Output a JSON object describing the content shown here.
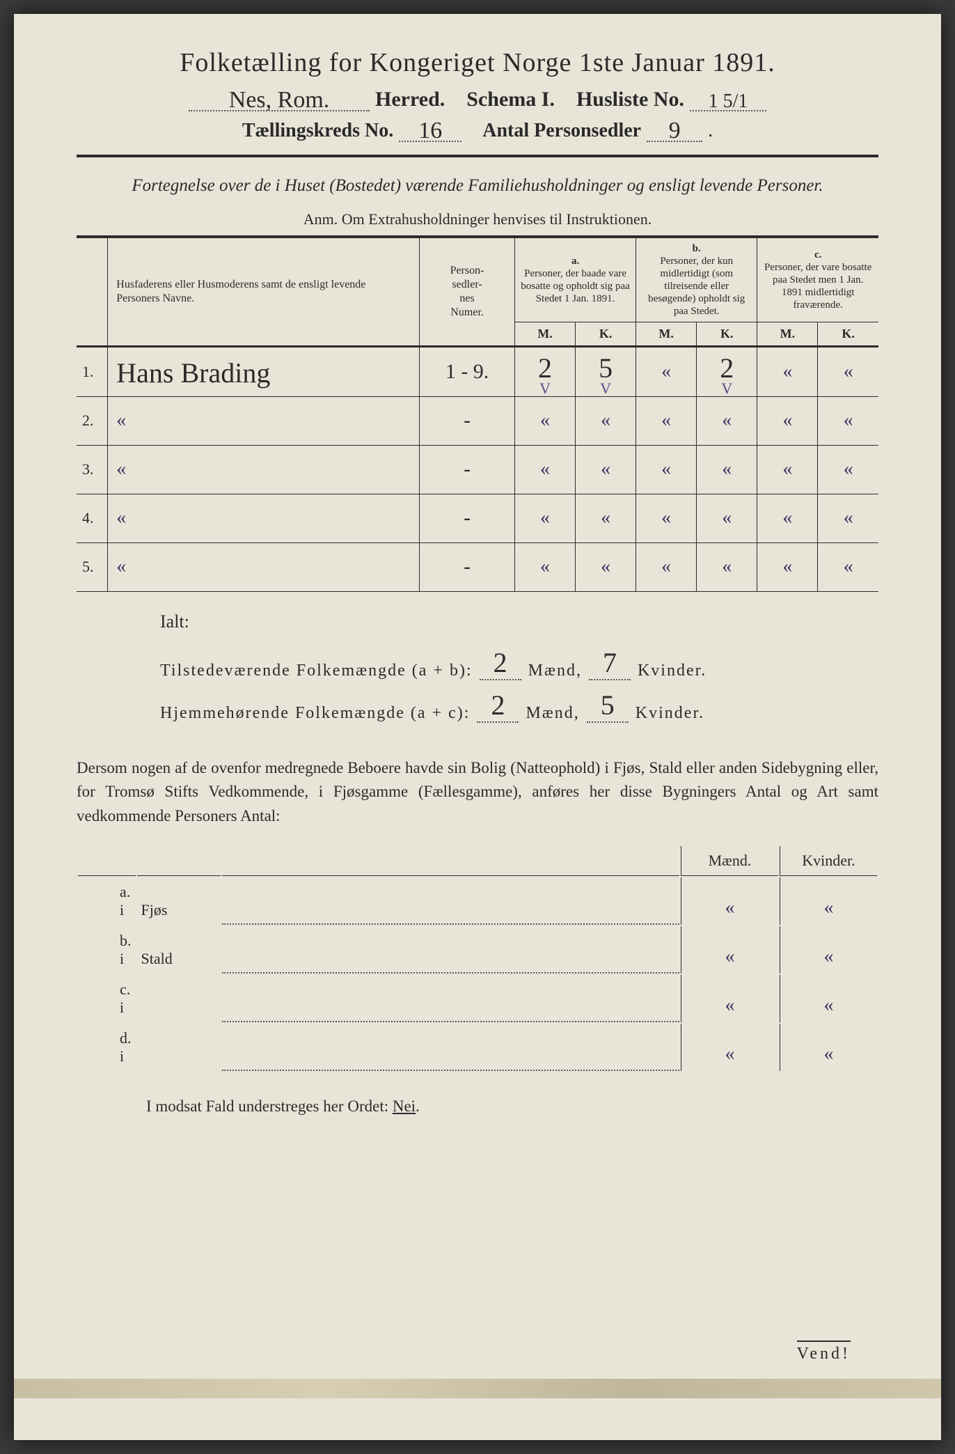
{
  "title": "Folketælling for Kongeriget Norge 1ste Januar 1891.",
  "header": {
    "herred_value": "Nes, Rom.",
    "herred_label": "Herred.",
    "schema_label": "Schema I.",
    "husliste_label": "Husliste No.",
    "husliste_value": "1 5/1",
    "kreds_label": "Tællingskreds No.",
    "kreds_value": "16",
    "personsedler_label": "Antal Personsedler",
    "personsedler_value": "9"
  },
  "subtitle": "Fortegnelse over de i Huset (Bostedet) værende Familiehusholdninger og ensligt levende Personer.",
  "anm": "Anm. Om Extrahusholdninger henvises til Instruktionen.",
  "table_headers": {
    "name": "Husfaderens eller Husmoderens samt de ensligt levende Personers Navne.",
    "personsedler": "Person-\nsedler-\nnes\nNumer.",
    "a_label": "a.",
    "a": "Personer, der baade vare bosatte og opholdt sig paa Stedet 1 Jan. 1891.",
    "b_label": "b.",
    "b": "Personer, der kun midlertidigt (som tilreisende eller besøgende) opholdt sig paa Stedet.",
    "c_label": "c.",
    "c": "Personer, der vare bosatte paa Stedet men 1 Jan. 1891 midlertidigt fraværende.",
    "m": "M.",
    "k": "K."
  },
  "rows": [
    {
      "n": "1.",
      "name": "Hans Brading",
      "ps": "1 - 9.",
      "am": "2",
      "ak": "5",
      "bm": "«",
      "bk": "2",
      "cm": "«",
      "ck": "«",
      "check_am": "V",
      "check_ak": "V",
      "check_bk": "V"
    },
    {
      "n": "2.",
      "name": "«",
      "ps": "-",
      "am": "«",
      "ak": "«",
      "bm": "«",
      "bk": "«",
      "cm": "«",
      "ck": "«"
    },
    {
      "n": "3.",
      "name": "«",
      "ps": "-",
      "am": "«",
      "ak": "«",
      "bm": "«",
      "bk": "«",
      "cm": "«",
      "ck": "«"
    },
    {
      "n": "4.",
      "name": "«",
      "ps": "-",
      "am": "«",
      "ak": "«",
      "bm": "«",
      "bk": "«",
      "cm": "«",
      "ck": "«"
    },
    {
      "n": "5.",
      "name": "«",
      "ps": "-",
      "am": "«",
      "ak": "«",
      "bm": "«",
      "bk": "«",
      "cm": "«",
      "ck": "«"
    }
  ],
  "ialt": {
    "label": "Ialt:",
    "row1_label": "Tilstedeværende Folkemængde (a + b):",
    "row1_m": "2",
    "row1_k": "7",
    "row2_label": "Hjemmehørende Folkemængde (a + c):",
    "row2_m": "2",
    "row2_k": "5",
    "maend": "Mænd,",
    "kvinder": "Kvinder."
  },
  "para": "Dersom nogen af de ovenfor medregnede Beboere havde sin Bolig (Natteophold) i Fjøs, Stald eller anden Sidebygning eller, for Tromsø Stifts Vedkommende, i Fjøsgamme (Fællesgamme), anføres her disse Bygningers Antal og Art samt vedkommende Personers Antal:",
  "bldg": {
    "maend": "Mænd.",
    "kvinder": "Kvinder.",
    "rows": [
      {
        "lab": "a. i",
        "type": "Fjøs",
        "m": "«",
        "k": "«"
      },
      {
        "lab": "b. i",
        "type": "Stald",
        "m": "«",
        "k": "«"
      },
      {
        "lab": "c. i",
        "type": "",
        "m": "«",
        "k": "«"
      },
      {
        "lab": "d. i",
        "type": "",
        "m": "«",
        "k": "«"
      }
    ]
  },
  "modsat_pre": "I modsat Fald understreges her Ordet: ",
  "modsat_word": "Nei",
  "vend": "Vend!",
  "colors": {
    "paper": "#e8e4d8",
    "ink": "#2a2a2a",
    "handwriting": "#2b2b2b",
    "pencil_check": "#5a4a8a"
  }
}
